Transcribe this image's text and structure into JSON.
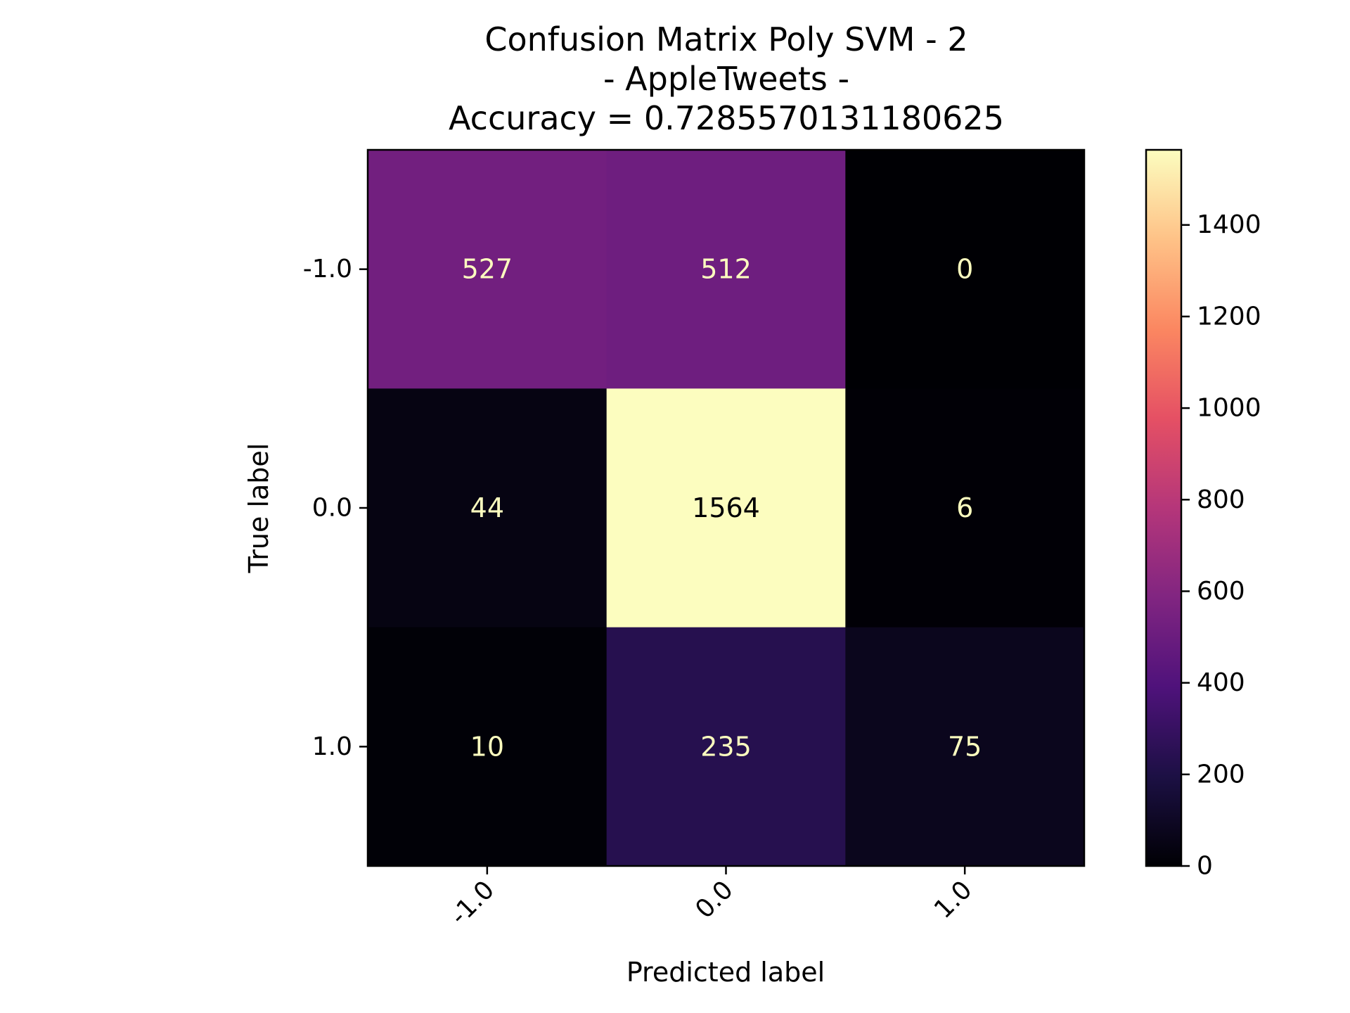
{
  "chart_data": {
    "type": "heatmap",
    "title": "Confusion Matrix Poly SVM - 2",
    "title_lines": [
      "Confusion Matrix Poly SVM - 2",
      "- AppleTweets -",
      "Accuracy = 0.7285570131180625"
    ],
    "xlabel": "Predicted label",
    "ylabel": "True label",
    "x_categories": [
      "-1.0",
      "0.0",
      "1.0"
    ],
    "y_categories": [
      "-1.0",
      "0.0",
      "1.0"
    ],
    "matrix": [
      [
        527,
        512,
        0
      ],
      [
        44,
        1564,
        6
      ],
      [
        10,
        235,
        75
      ]
    ],
    "colormap": "magma",
    "colorbar": {
      "min": 0,
      "max": 1564,
      "ticks": [
        0,
        200,
        400,
        600,
        800,
        1000,
        1200,
        1400
      ]
    },
    "text_color_light": "#fcfdbf",
    "text_color_dark": "#000004",
    "grid": false,
    "x_tick_rotation": "45 degrees"
  }
}
